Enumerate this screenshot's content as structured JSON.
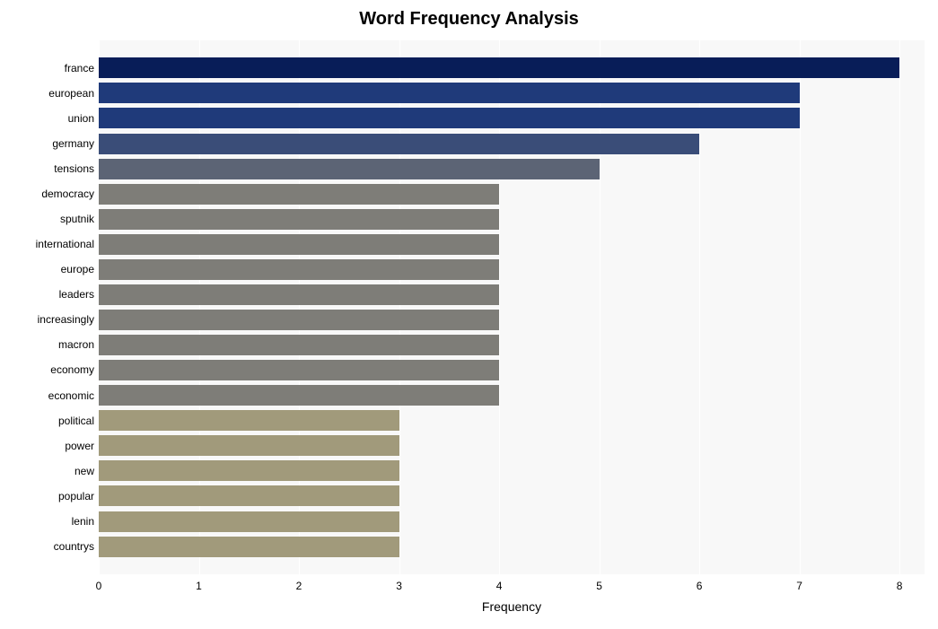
{
  "chart": {
    "type": "bar-horizontal",
    "title": "Word Frequency Analysis",
    "title_fontsize": 20,
    "title_fontweight": "bold",
    "background_color": "#ffffff",
    "plot_background_color": "#f8f8f8",
    "grid_color": "#ffffff",
    "x_axis": {
      "label": "Frequency",
      "label_fontsize": 14,
      "min": 0,
      "max": 8.25,
      "tick_step": 1,
      "ticks": [
        0,
        1,
        2,
        3,
        4,
        5,
        6,
        7,
        8
      ],
      "tick_fontsize": 12
    },
    "y_axis": {
      "tick_fontsize": 12
    },
    "bar_gap_ratio": 0.18,
    "top_pad_ratio": 0.6,
    "bottom_pad_ratio": 0.6,
    "bars": [
      {
        "label": "france",
        "value": 8,
        "color": "#081d58"
      },
      {
        "label": "european",
        "value": 7,
        "color": "#1f3a7a"
      },
      {
        "label": "union",
        "value": 7,
        "color": "#1f3a7a"
      },
      {
        "label": "germany",
        "value": 6,
        "color": "#3a4d78"
      },
      {
        "label": "tensions",
        "value": 5,
        "color": "#5c6475"
      },
      {
        "label": "democracy",
        "value": 4,
        "color": "#7e7d78"
      },
      {
        "label": "sputnik",
        "value": 4,
        "color": "#7e7d78"
      },
      {
        "label": "international",
        "value": 4,
        "color": "#7e7d78"
      },
      {
        "label": "europe",
        "value": 4,
        "color": "#7e7d78"
      },
      {
        "label": "leaders",
        "value": 4,
        "color": "#7e7d78"
      },
      {
        "label": "increasingly",
        "value": 4,
        "color": "#7e7d78"
      },
      {
        "label": "macron",
        "value": 4,
        "color": "#7e7d78"
      },
      {
        "label": "economy",
        "value": 4,
        "color": "#7e7d78"
      },
      {
        "label": "economic",
        "value": 4,
        "color": "#7e7d78"
      },
      {
        "label": "political",
        "value": 3,
        "color": "#a19a7b"
      },
      {
        "label": "power",
        "value": 3,
        "color": "#a19a7b"
      },
      {
        "label": "new",
        "value": 3,
        "color": "#a19a7b"
      },
      {
        "label": "popular",
        "value": 3,
        "color": "#a19a7b"
      },
      {
        "label": "lenin",
        "value": 3,
        "color": "#a19a7b"
      },
      {
        "label": "countrys",
        "value": 3,
        "color": "#a19a7b"
      }
    ]
  }
}
